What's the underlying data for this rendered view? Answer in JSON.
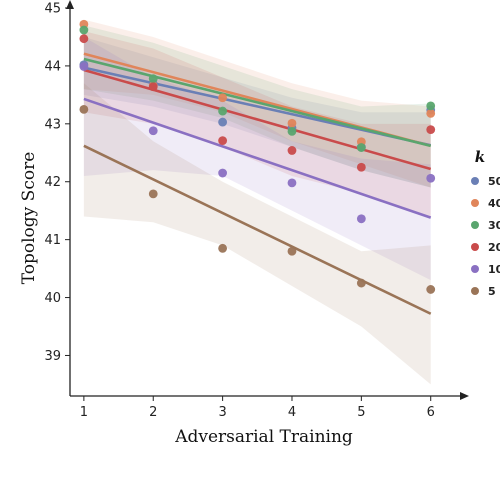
{
  "chart_data": {
    "type": "scatter",
    "title": "",
    "xlabel": "Adversarial Training",
    "ylabel": "Topology Score",
    "xlim": [
      0.8,
      6.35
    ],
    "ylim": [
      38.3,
      45.0
    ],
    "xticks": [
      1,
      2,
      3,
      4,
      5,
      6
    ],
    "yticks": [
      39,
      40,
      41,
      42,
      43,
      44,
      45
    ],
    "grid": false,
    "legend": {
      "title": "k",
      "placement": "right"
    },
    "regression_lines": true,
    "confidence_bands": true,
    "series": [
      {
        "name": "50",
        "color": "#6a7fb5",
        "x": [
          1,
          2,
          3,
          4,
          5,
          6
        ],
        "y": [
          44.02,
          43.69,
          43.03,
          42.93,
          42.6,
          43.24
        ],
        "fit": [
          43.97,
          42.63
        ],
        "band_lo": [
          43.5,
          43.3,
          43.0,
          42.6,
          42.2,
          41.9
        ],
        "band_hi": [
          44.5,
          44.15,
          43.8,
          43.45,
          43.2,
          43.2
        ]
      },
      {
        "name": "40",
        "color": "#e0855a",
        "x": [
          1,
          2,
          3,
          4,
          5,
          6
        ],
        "y": [
          44.72,
          43.66,
          43.45,
          43.01,
          42.69,
          43.18
        ],
        "fit": [
          44.21,
          42.62
        ],
        "band_lo": [
          43.6,
          43.5,
          43.2,
          42.7,
          42.3,
          41.9
        ],
        "band_hi": [
          44.8,
          44.5,
          44.1,
          43.7,
          43.4,
          43.3
        ]
      },
      {
        "name": "30",
        "color": "#5aa56e",
        "x": [
          1,
          2,
          3,
          4,
          5,
          6
        ],
        "y": [
          44.62,
          43.78,
          43.22,
          42.87,
          42.59,
          43.31
        ],
        "fit": [
          44.12,
          42.62
        ],
        "band_lo": [
          43.6,
          43.4,
          43.1,
          42.6,
          42.2,
          41.9
        ],
        "band_hi": [
          44.7,
          44.4,
          44.0,
          43.6,
          43.3,
          43.35
        ]
      },
      {
        "name": "20",
        "color": "#c94b4b",
        "x": [
          1,
          2,
          3,
          4,
          5,
          6
        ],
        "y": [
          44.47,
          43.64,
          42.71,
          42.54,
          42.25,
          42.9
        ],
        "fit": [
          43.93,
          42.22
        ],
        "band_lo": [
          43.2,
          43.0,
          42.6,
          42.1,
          41.8,
          41.4
        ],
        "band_hi": [
          44.6,
          44.3,
          43.8,
          43.3,
          43.0,
          43.0
        ]
      },
      {
        "name": "10",
        "color": "#8a70c2",
        "x": [
          1,
          2,
          3,
          4,
          5,
          6
        ],
        "y": [
          43.99,
          42.88,
          42.15,
          41.98,
          41.36,
          42.06
        ],
        "fit": [
          43.43,
          41.38
        ],
        "band_lo": [
          42.1,
          42.2,
          42.1,
          41.5,
          40.9,
          40.3
        ],
        "band_hi": [
          44.5,
          43.8,
          43.4,
          42.7,
          42.4,
          42.3
        ]
      },
      {
        "name": "5",
        "color": "#9a7457",
        "x": [
          1,
          2,
          3,
          4,
          5,
          6
        ],
        "y": [
          43.25,
          41.79,
          40.85,
          40.8,
          40.25,
          40.14
        ],
        "fit": [
          42.62,
          39.72
        ],
        "band_lo": [
          41.4,
          41.3,
          40.9,
          40.2,
          39.5,
          38.5
        ],
        "band_hi": [
          43.7,
          42.7,
          42.0,
          41.4,
          40.8,
          40.9
        ]
      }
    ]
  }
}
